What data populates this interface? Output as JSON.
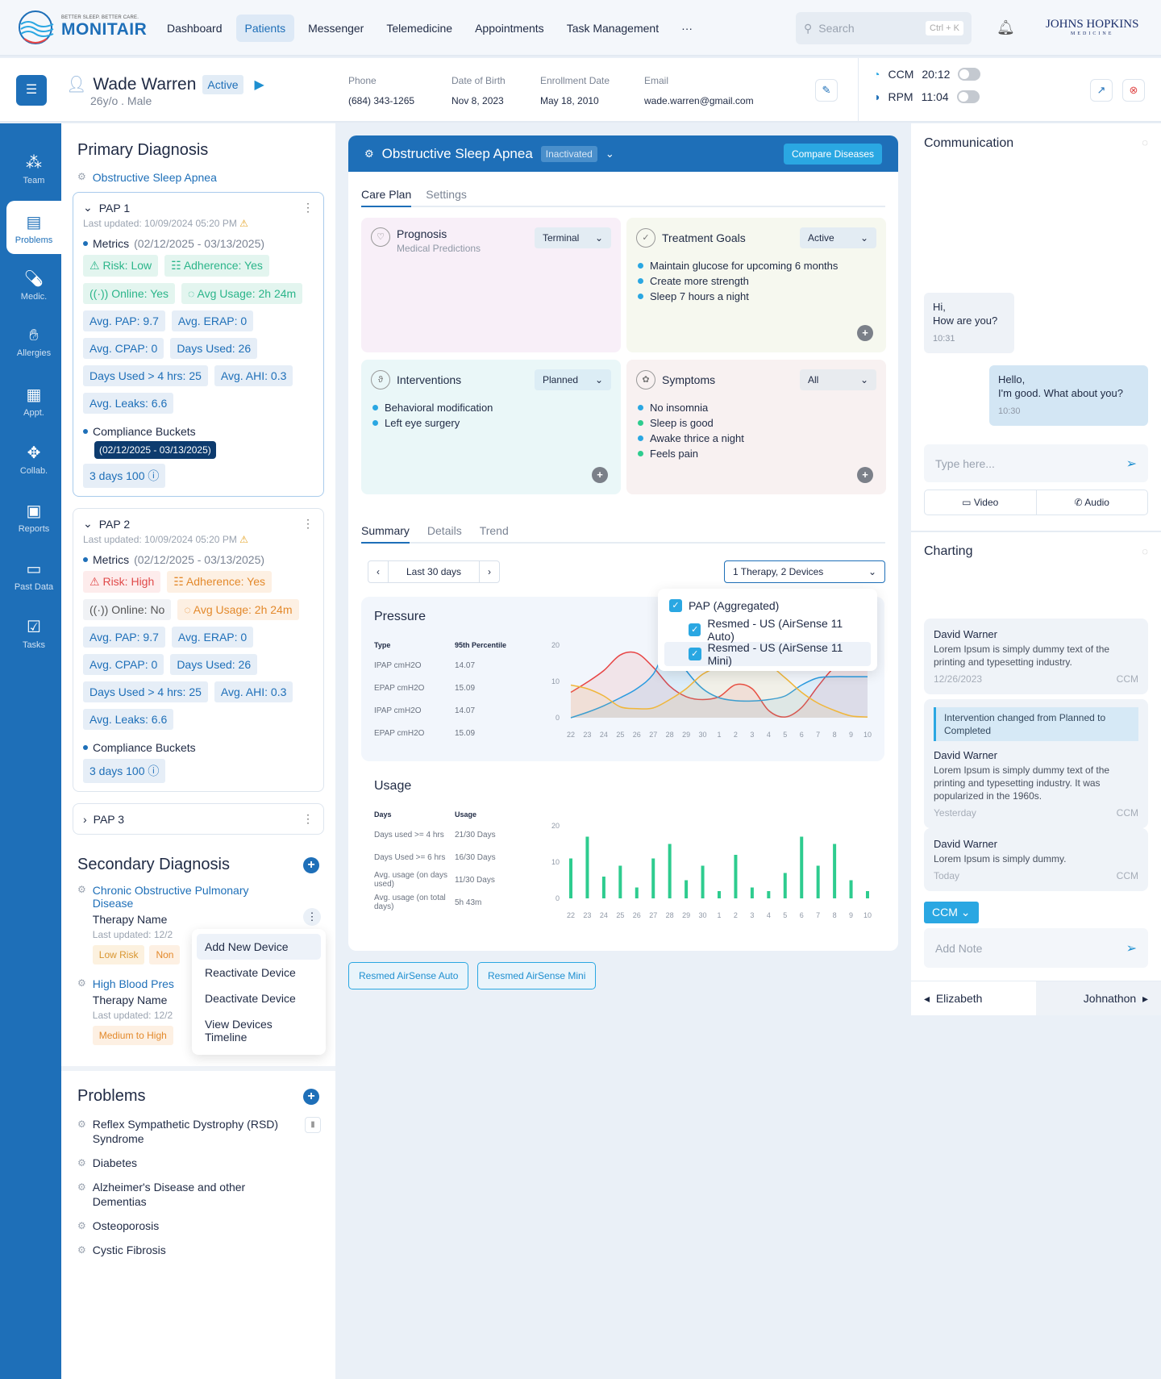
{
  "brand": {
    "tagline": "BETTER SLEEP. BETTER CARE.",
    "name": "MONITAIR",
    "partner": "JOHNS HOPKINS",
    "partner_sub": "MEDICINE"
  },
  "nav": {
    "items": [
      "Dashboard",
      "Patients",
      "Messenger",
      "Telemedicine",
      "Appointments",
      "Task Management"
    ],
    "active": "Patients",
    "more": "···"
  },
  "search": {
    "placeholder": "Search",
    "shortcut": "Ctrl + K"
  },
  "patient": {
    "name": "Wade Warren",
    "status": "Active",
    "sub": "26y/o . Male",
    "fields": [
      {
        "label": "Phone",
        "value": "(684) 343-1265"
      },
      {
        "label": "Date of Birth",
        "value": "Nov 8, 2023"
      },
      {
        "label": "Enrollment Date",
        "value": "May 18, 2010"
      },
      {
        "label": "Email",
        "value": "wade.warren@gmail.com"
      }
    ],
    "timers": [
      {
        "label": "CCM",
        "time": "20:12"
      },
      {
        "label": "RPM",
        "time": "11:04"
      }
    ]
  },
  "sidebar": {
    "items": [
      "Team",
      "Problems",
      "Medic.",
      "Allergies",
      "Appt.",
      "Collab.",
      "Reports",
      "Past Data",
      "Tasks"
    ],
    "active": "Problems"
  },
  "primary": {
    "title": "Primary Diagnosis",
    "diagnosis": "Obstructive Sleep Apnea",
    "paps": [
      {
        "name": "PAP 1",
        "updated": "Last updated: 10/09/2024 05:20 PM",
        "metrics_label": "Metrics",
        "range": "(02/12/2025 - 03/13/2025)",
        "status_chips": [
          "Risk: Low",
          "Adherence: Yes",
          "Online: Yes",
          "Avg Usage: 2h 24m"
        ],
        "chips": [
          "Avg. PAP: 9.7",
          "Avg. ERAP: 0",
          "Avg. CPAP: 0",
          "Days Used: 26",
          "Days Used > 4 hrs: 25",
          "Avg. AHI: 0.3",
          "Avg. Leaks: 6.6"
        ],
        "bucket_label": "Compliance Buckets",
        "bucket": "3 days 100",
        "tooltip": "(02/12/2025 - 03/13/2025)"
      },
      {
        "name": "PAP 2",
        "updated": "Last updated: 10/09/2024 05:20 PM",
        "metrics_label": "Metrics",
        "range": "(02/12/2025 - 03/13/2025)",
        "status_chips": [
          "Risk: High",
          "Adherence: Yes",
          "Online: No",
          "Avg Usage: 2h 24m"
        ],
        "chips": [
          "Avg. PAP: 9.7",
          "Avg. ERAP: 0",
          "Avg. CPAP: 0",
          "Days Used: 26",
          "Days Used > 4 hrs: 25",
          "Avg. AHI: 0.3",
          "Avg. Leaks: 6.6"
        ],
        "bucket_label": "Compliance Buckets",
        "bucket": "3 days 100"
      },
      {
        "name": "PAP 3"
      }
    ]
  },
  "secondary": {
    "title": "Secondary Diagnosis",
    "items": [
      {
        "name": "Chronic Obstructive Pulmonary Disease",
        "therapy": "Therapy Name",
        "updated": "Last updated: 12/2",
        "chips": [
          "Low Risk",
          "Non"
        ]
      },
      {
        "name": "High Blood Pres",
        "therapy": "Therapy Name",
        "updated": "Last updated: 12/2",
        "chips": [
          "Medium to High"
        ]
      }
    ],
    "menu": [
      "Add New Device",
      "Reactivate Device",
      "Deactivate Device",
      "View Devices Timeline"
    ]
  },
  "problems": {
    "title": "Problems",
    "items": [
      "Reflex Sympathetic Dystrophy (RSD) Syndrome",
      "Diabetes",
      "Alzheimer's Disease and other Dementias",
      "Osteoporosis",
      "Cystic Fibrosis"
    ]
  },
  "disease": {
    "title": "Obstructive Sleep Apnea",
    "status": "Inactivated",
    "compare": "Compare Diseases",
    "tabs": [
      "Care Plan",
      "Settings"
    ],
    "cards": [
      {
        "title": "Prognosis",
        "subtitle": "Medical Predictions",
        "select": "Terminal",
        "items": []
      },
      {
        "title": "Treatment Goals",
        "select": "Active",
        "items": [
          "Maintain glucose for upcoming 6 months",
          "Create more strength",
          "Sleep 7 hours a night"
        ]
      },
      {
        "title": "Interventions",
        "select": "Planned",
        "items": [
          "Behavioral modification",
          "Left eye surgery"
        ]
      },
      {
        "title": "Symptoms",
        "select": "All",
        "items": [
          "No insomnia",
          "Sleep is good",
          "Awake thrice a night",
          "Feels pain"
        ]
      }
    ],
    "summary_tabs": [
      "Summary",
      "Details",
      "Trend"
    ],
    "range": "Last 30 days",
    "device_select": "1 Therapy,  2 Devices",
    "device_options": [
      "PAP (Aggregated)",
      "Resmed - US (AirSense 11 Auto)",
      "Resmed - US (AirSense 11 Mini)"
    ],
    "devices": [
      "Resmed AirSense Auto",
      "Resmed AirSense Mini"
    ]
  },
  "chart_data": [
    {
      "type": "line",
      "title": "Pressure",
      "x": [
        "22",
        "23",
        "24",
        "25",
        "26",
        "27",
        "28",
        "29",
        "30",
        "1",
        "2",
        "3",
        "4",
        "5",
        "6",
        "7",
        "8",
        "9",
        "10"
      ],
      "ylim": [
        0,
        20
      ],
      "yticks": [
        0,
        10,
        20
      ],
      "table": {
        "headers": [
          "Type",
          "95th Percentile"
        ],
        "rows": [
          [
            "IPAP cmH2O",
            "14.07"
          ],
          [
            "EPAP cmH2O",
            "15.09"
          ],
          [
            "IPAP cmH2O",
            "14.07"
          ],
          [
            "EPAP cmH2O",
            "15.09"
          ]
        ]
      },
      "series": [
        {
          "color": "#e84545",
          "values": [
            7,
            9.8,
            13,
            17.3,
            17.8,
            13.9,
            8.7,
            5.8,
            5,
            5.8,
            9.1,
            8,
            2,
            0.2,
            2.8,
            8.7,
            13.9,
            16,
            17
          ]
        },
        {
          "color": "#2a9be0",
          "values": [
            0,
            1.5,
            3.3,
            5.5,
            8,
            12,
            20,
            13,
            8,
            5.5,
            4.7,
            4.6,
            5,
            6,
            9,
            11,
            11.3,
            11.3,
            11.3
          ]
        },
        {
          "color": "#f0b63a",
          "values": [
            9,
            8,
            6,
            3,
            2.5,
            2.7,
            5,
            8,
            12,
            14,
            15,
            15,
            14.5,
            11,
            7,
            4,
            2,
            0.5,
            0.2
          ]
        }
      ]
    },
    {
      "type": "bar",
      "title": "Usage",
      "x": [
        "22",
        "23",
        "24",
        "25",
        "26",
        "27",
        "28",
        "29",
        "30",
        "1",
        "2",
        "3",
        "4",
        "5",
        "6",
        "7",
        "8",
        "9",
        "10"
      ],
      "ylim": [
        0,
        20
      ],
      "yticks": [
        0,
        10,
        20
      ],
      "color": "#2ecc8f",
      "values": [
        11,
        17,
        6,
        9,
        3,
        11,
        15,
        5,
        9,
        2,
        12,
        3,
        2,
        7,
        17,
        9,
        15,
        5,
        2
      ],
      "table": {
        "headers": [
          "Days",
          "Usage"
        ],
        "rows": [
          [
            "Days used >= 4 hrs",
            "21/30 Days"
          ],
          [
            "Days Used >= 6 hrs",
            "16/30 Days"
          ],
          [
            "Avg. usage (on days used)",
            "11/30 Days"
          ],
          [
            "Avg. usage (on total days)",
            "5h 43m"
          ]
        ]
      }
    }
  ],
  "communication": {
    "title": "Communication",
    "messages": [
      {
        "text": "Hi,\nHow are you?",
        "time": "10:31"
      },
      {
        "text": "Hello,\nI'm good. What about you?",
        "time": "10:30"
      }
    ],
    "placeholder": "Type here...",
    "video": "Video",
    "audio": "Audio"
  },
  "charting": {
    "title": "Charting",
    "notes": [
      {
        "author": "David Warner",
        "text": "Lorem Ipsum is simply dummy text of the printing and typesetting industry.",
        "date": "12/26/2023",
        "tag": "CCM"
      },
      {
        "event": "Intervention changed from Planned to Completed",
        "author": "David Warner",
        "text": "Lorem Ipsum is simply dummy text of the printing and typesetting industry. It was popularized in the 1960s.",
        "date": "Yesterday",
        "tag": "CCM"
      },
      {
        "author": "David Warner",
        "text": "Lorem Ipsum is simply dummy.",
        "date": "Today",
        "tag": "CCM"
      }
    ],
    "program": "CCM",
    "placeholder": "Add Note",
    "prev": "Elizabeth",
    "next": "Johnathon"
  }
}
